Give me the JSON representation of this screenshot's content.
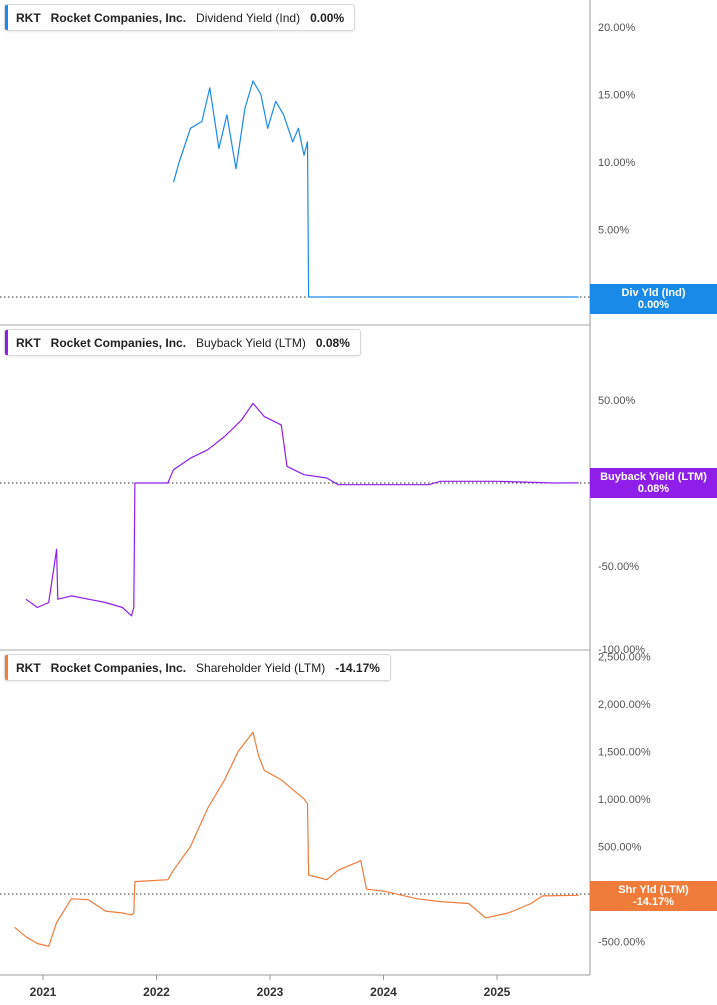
{
  "colors": {
    "dividend": "#1a8ae8",
    "buyback": "#8f1fe8",
    "shareholder": "#f07c3c",
    "grid_axis": "#888888"
  },
  "panels": [
    {
      "ticker": "RKT",
      "company": "Rocket Companies, Inc.",
      "metric": "Dividend Yield (Ind)",
      "value": "0.00%",
      "tag_label": "Div Yld (Ind)",
      "tag_value": "0.00%"
    },
    {
      "ticker": "RKT",
      "company": "Rocket Companies, Inc.",
      "metric": "Buyback Yield (LTM)",
      "value": "0.08%",
      "tag_label": "Buyback Yield (LTM)",
      "tag_value": "0.08%"
    },
    {
      "ticker": "RKT",
      "company": "Rocket Companies, Inc.",
      "metric": "Shareholder Yield (LTM)",
      "value": "-14.17%",
      "tag_label": "Shr Yld (LTM)",
      "tag_value": "-14.17%"
    }
  ],
  "chart_data": [
    {
      "type": "line",
      "series": [
        {
          "name": "Dividend Yield (Ind)",
          "x": [
            2022.15,
            2022.2,
            2022.3,
            2022.4,
            2022.47,
            2022.55,
            2022.62,
            2022.7,
            2022.78,
            2022.85,
            2022.92,
            2022.98,
            2023.05,
            2023.12,
            2023.2,
            2023.25,
            2023.3,
            2023.33,
            2023.34,
            2023.5,
            2024.0,
            2024.5,
            2025.0,
            2025.5,
            2025.72
          ],
          "y": [
            8.5,
            10.0,
            12.5,
            13.0,
            15.5,
            11.0,
            13.5,
            9.5,
            14.0,
            16.0,
            15.0,
            12.5,
            14.5,
            13.5,
            11.5,
            12.5,
            10.5,
            11.5,
            0.0,
            0.0,
            0.0,
            0.0,
            0.0,
            0.0,
            0.0
          ]
        }
      ],
      "yticks": [
        "20.00%",
        "15.00%",
        "10.00%",
        "5.00%",
        "0.00%"
      ],
      "ylim": [
        0,
        22
      ]
    },
    {
      "type": "line",
      "series": [
        {
          "name": "Buyback Yield (LTM)",
          "x": [
            2020.85,
            2020.95,
            2021.05,
            2021.12,
            2021.13,
            2021.25,
            2021.4,
            2021.55,
            2021.7,
            2021.78,
            2021.8,
            2021.81,
            2022.1,
            2022.15,
            2022.3,
            2022.45,
            2022.6,
            2022.75,
            2022.85,
            2022.95,
            2023.1,
            2023.15,
            2023.3,
            2023.5,
            2023.6,
            2023.8,
            2024.0,
            2024.4,
            2024.5,
            2025.0,
            2025.5,
            2025.72
          ],
          "y": [
            -70,
            -75,
            -72,
            -40,
            -70,
            -68,
            -70,
            -72,
            -75,
            -80,
            -75,
            0,
            0,
            8,
            15,
            20,
            28,
            38,
            48,
            40,
            35,
            10,
            5,
            3,
            -1,
            -1,
            -1,
            -1,
            1,
            1,
            0,
            0.08
          ]
        }
      ],
      "yticks": [
        "50.00%",
        "-50.00%",
        "-100.00%"
      ],
      "ylim": [
        -100,
        60
      ]
    },
    {
      "type": "line",
      "series": [
        {
          "name": "Shareholder Yield (LTM)",
          "x": [
            2020.75,
            2020.85,
            2020.95,
            2021.05,
            2021.12,
            2021.25,
            2021.4,
            2021.55,
            2021.7,
            2021.78,
            2021.8,
            2021.81,
            2022.1,
            2022.15,
            2022.3,
            2022.45,
            2022.6,
            2022.72,
            2022.85,
            2022.9,
            2022.95,
            2023.1,
            2023.2,
            2023.3,
            2023.33,
            2023.34,
            2023.5,
            2023.6,
            2023.8,
            2023.85,
            2024.0,
            2024.3,
            2024.5,
            2024.75,
            2024.9,
            2025.1,
            2025.3,
            2025.4,
            2025.72
          ],
          "y": [
            -350,
            -450,
            -520,
            -550,
            -300,
            -50,
            -60,
            -180,
            -200,
            -220,
            -200,
            130,
            150,
            250,
            500,
            900,
            1200,
            1500,
            1700,
            1450,
            1300,
            1200,
            1100,
            1000,
            950,
            200,
            150,
            250,
            350,
            50,
            30,
            -50,
            -80,
            -100,
            -250,
            -200,
            -100,
            -20,
            -14.17
          ]
        }
      ],
      "yticks": [
        "2,500.00%",
        "2,000.00%",
        "1,500.00%",
        "1,000.00%",
        "500.00%",
        "0.00%",
        "-500.00%"
      ],
      "ylim": [
        -700,
        2500
      ]
    }
  ],
  "x_axis": {
    "ticks": [
      "2021",
      "2022",
      "2023",
      "2024",
      "2025"
    ]
  }
}
